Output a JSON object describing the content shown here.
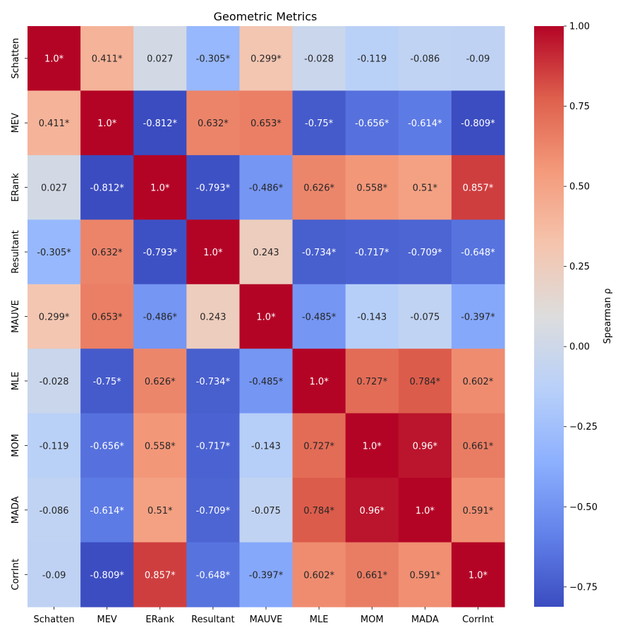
{
  "chart_data": {
    "type": "heatmap",
    "title": "Geometric Metrics",
    "x_categories": [
      "Schatten",
      "MEV",
      "ERank",
      "Resultant",
      "MAUVE",
      "MLE",
      "MOM",
      "MADA",
      "CorrInt"
    ],
    "y_categories": [
      "Schatten",
      "MEV",
      "ERank",
      "Resultant",
      "MAUVE",
      "MLE",
      "MOM",
      "MADA",
      "CorrInt"
    ],
    "values": [
      [
        1.0,
        0.411,
        0.027,
        -0.305,
        0.299,
        -0.028,
        -0.119,
        -0.086,
        -0.09
      ],
      [
        0.411,
        1.0,
        -0.812,
        0.632,
        0.653,
        -0.75,
        -0.656,
        -0.614,
        -0.809
      ],
      [
        0.027,
        -0.812,
        1.0,
        -0.793,
        -0.486,
        0.626,
        0.558,
        0.51,
        0.857
      ],
      [
        -0.305,
        0.632,
        -0.793,
        1.0,
        0.243,
        -0.734,
        -0.717,
        -0.709,
        -0.648
      ],
      [
        0.299,
        0.653,
        -0.486,
        0.243,
        1.0,
        -0.485,
        -0.143,
        -0.075,
        -0.397
      ],
      [
        -0.028,
        -0.75,
        0.626,
        -0.734,
        -0.485,
        1.0,
        0.727,
        0.784,
        0.602
      ],
      [
        -0.119,
        -0.656,
        0.558,
        -0.717,
        -0.143,
        0.727,
        1.0,
        0.96,
        0.661
      ],
      [
        -0.086,
        -0.614,
        0.51,
        -0.709,
        -0.075,
        0.784,
        0.96,
        1.0,
        0.591
      ],
      [
        -0.09,
        -0.809,
        0.857,
        -0.648,
        -0.397,
        0.602,
        0.661,
        0.591,
        1.0
      ]
    ],
    "labels": [
      [
        "1.0*",
        "0.411*",
        "0.027",
        "-0.305*",
        "0.299*",
        "-0.028",
        "-0.119",
        "-0.086",
        "-0.09"
      ],
      [
        "0.411*",
        "1.0*",
        "-0.812*",
        "0.632*",
        "0.653*",
        "-0.75*",
        "-0.656*",
        "-0.614*",
        "-0.809*"
      ],
      [
        "0.027",
        "-0.812*",
        "1.0*",
        "-0.793*",
        "-0.486*",
        "0.626*",
        "0.558*",
        "0.51*",
        "0.857*"
      ],
      [
        "-0.305*",
        "0.632*",
        "-0.793*",
        "1.0*",
        "0.243",
        "-0.734*",
        "-0.717*",
        "-0.709*",
        "-0.648*"
      ],
      [
        "0.299*",
        "0.653*",
        "-0.486*",
        "0.243",
        "1.0*",
        "-0.485*",
        "-0.143",
        "-0.075",
        "-0.397*"
      ],
      [
        "-0.028",
        "-0.75*",
        "0.626*",
        "-0.734*",
        "-0.485*",
        "1.0*",
        "0.727*",
        "0.784*",
        "0.602*"
      ],
      [
        "-0.119",
        "-0.656*",
        "0.558*",
        "-0.717*",
        "-0.143",
        "0.727*",
        "1.0*",
        "0.96*",
        "0.661*"
      ],
      [
        "-0.086",
        "-0.614*",
        "0.51*",
        "-0.709*",
        "-0.075",
        "0.784*",
        "0.96*",
        "1.0*",
        "0.591*"
      ],
      [
        "-0.09",
        "-0.809*",
        "0.857*",
        "-0.648*",
        "-0.397*",
        "0.602*",
        "0.661*",
        "0.591*",
        "1.0*"
      ]
    ],
    "colormap": "coolwarm",
    "vmin": -0.812,
    "vmax": 1.0,
    "colorbar": {
      "label": "Spearman ρ",
      "ticks": [
        1.0,
        0.75,
        0.5,
        0.25,
        0.0,
        -0.25,
        -0.5,
        -0.75
      ],
      "tick_labels": [
        "1.00",
        "0.75",
        "0.50",
        "0.25",
        "0.00",
        "−0.25",
        "−0.50",
        "−0.75"
      ],
      "placement": "right"
    },
    "colors": {
      "text_light": "#ffffff",
      "text_dark": "#262626",
      "axis": "#000000"
    }
  }
}
